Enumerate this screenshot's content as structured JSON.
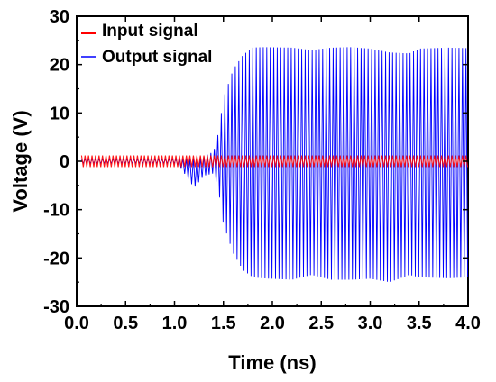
{
  "chart_data": {
    "type": "line",
    "xlabel": "Time (ns)",
    "ylabel": "Voltage (V)",
    "xlim": [
      0.0,
      4.0
    ],
    "ylim": [
      -30,
      30
    ],
    "x_ticks": [
      "0.0",
      "0.5",
      "1.0",
      "1.5",
      "2.0",
      "2.5",
      "3.0",
      "3.5",
      "4.0"
    ],
    "y_ticks": [
      "30",
      "20",
      "10",
      "0",
      "-10",
      "-20",
      "-30"
    ],
    "legend_position": "top-left",
    "grid": false,
    "series": [
      {
        "name": "Input signal",
        "color": "#ff0000",
        "description_points": {
          "x": [
            0.05,
            4.0
          ],
          "amplitude": [
            1.2,
            1.2
          ]
        }
      },
      {
        "name": "Output signal",
        "color": "#0000ff",
        "envelope": {
          "x": [
            0.05,
            1.0,
            1.05,
            1.2,
            1.3,
            1.4,
            1.45,
            1.5,
            1.6,
            1.7,
            1.8,
            1.9,
            2.2,
            2.4,
            2.6,
            2.8,
            3.0,
            3.2,
            3.4,
            3.5,
            3.8,
            4.0
          ],
          "upper": [
            0.4,
            0.4,
            0.5,
            0.6,
            1.0,
            2.0,
            6.0,
            13.0,
            19.0,
            22.0,
            23.5,
            23.6,
            23.5,
            23.0,
            23.5,
            23.6,
            23.3,
            22.5,
            22.3,
            23.3,
            23.5,
            23.4
          ],
          "lower": [
            -0.4,
            -0.4,
            -1.0,
            -5.5,
            -3.0,
            -2.5,
            -6.0,
            -13.0,
            -19.0,
            -22.5,
            -24.0,
            -24.2,
            -24.5,
            -23.5,
            -24.5,
            -24.5,
            -24.3,
            -25.0,
            -23.5,
            -24.0,
            -24.2,
            -24.0
          ]
        }
      }
    ]
  }
}
